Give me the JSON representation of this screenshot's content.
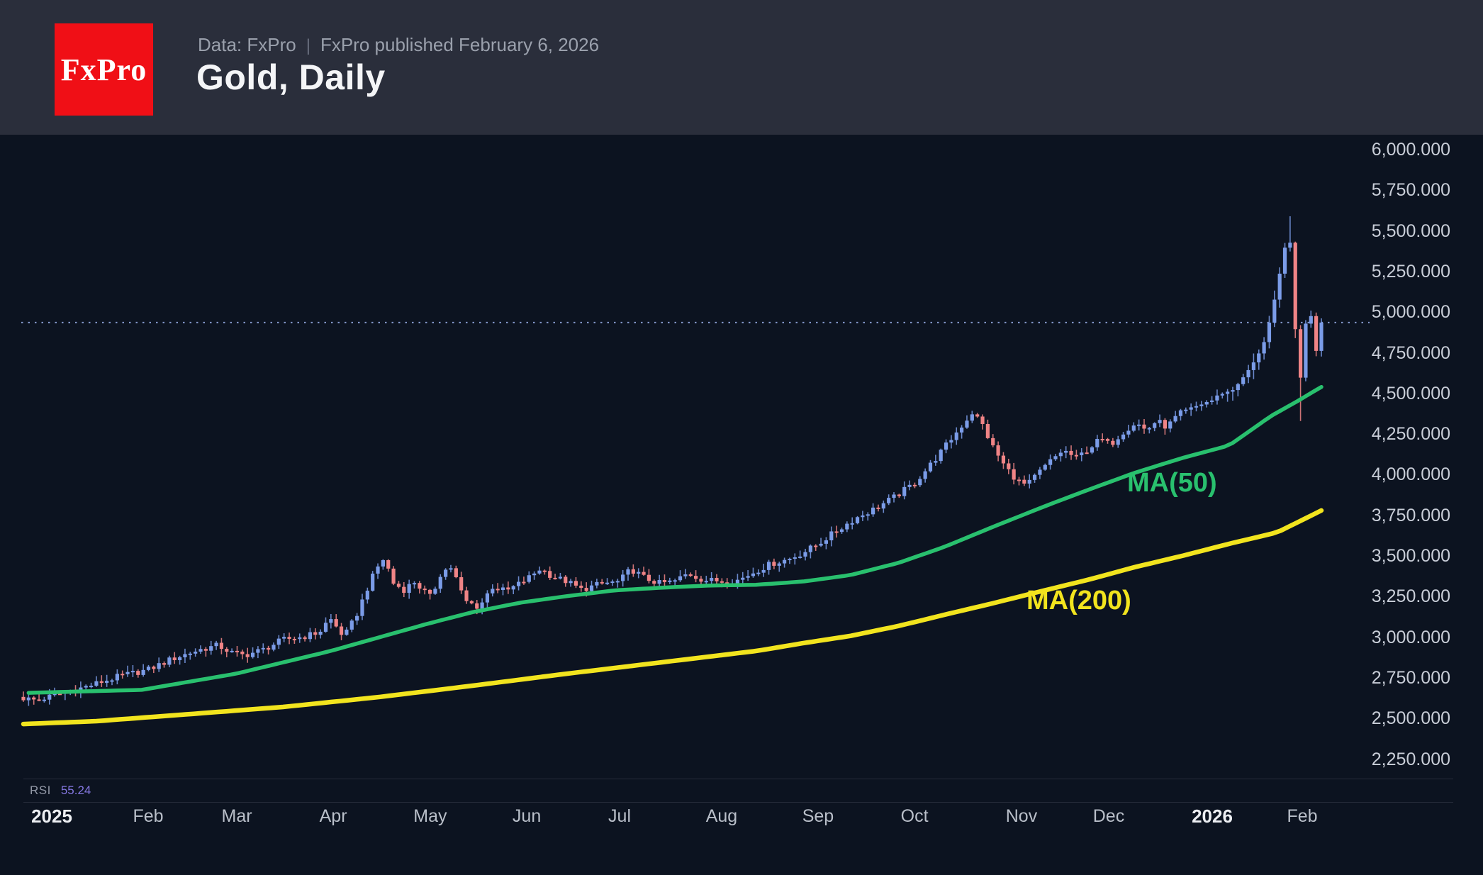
{
  "header": {
    "logo_text": "FxPro",
    "data_source": "Data: FxPro",
    "separator": "|",
    "published": "FxPro published February 6, 2026",
    "title": "Gold, Daily"
  },
  "chart_data": {
    "type": "candlestick",
    "instrument": "Gold",
    "timeframe": "Daily",
    "y_axis": {
      "tick_values": [
        6000,
        5750,
        5500,
        5250,
        5000,
        4750,
        4500,
        4250,
        4000,
        3750,
        3500,
        3250,
        3000,
        2750,
        2500,
        2250
      ],
      "tick_labels": [
        "6,000.000",
        "5,750.000",
        "5,500.000",
        "5,250.000",
        "5,000.000",
        "4,750.000",
        "4,500.000",
        "4,250.000",
        "4,000.000",
        "3,750.000",
        "3,500.000",
        "3,250.000",
        "3,000.000",
        "2,750.000",
        "2,500.000",
        "2,250.000"
      ]
    },
    "x_axis": {
      "labels": [
        {
          "label": "2025",
          "pos": 0.0349,
          "bold": true
        },
        {
          "label": "Feb",
          "pos": 0.0999,
          "bold": false
        },
        {
          "label": "Mar",
          "pos": 0.1597,
          "bold": false
        },
        {
          "label": "Apr",
          "pos": 0.2247,
          "bold": false
        },
        {
          "label": "May",
          "pos": 0.2901,
          "bold": false
        },
        {
          "label": "Jun",
          "pos": 0.3552,
          "bold": false
        },
        {
          "label": "Jul",
          "pos": 0.4178,
          "bold": false
        },
        {
          "label": "Aug",
          "pos": 0.4866,
          "bold": false
        },
        {
          "label": "Sep",
          "pos": 0.5516,
          "bold": false
        },
        {
          "label": "Oct",
          "pos": 0.6167,
          "bold": false
        },
        {
          "label": "Nov",
          "pos": 0.6888,
          "bold": false
        },
        {
          "label": "Dec",
          "pos": 0.7476,
          "bold": false
        },
        {
          "label": "2026",
          "pos": 0.8174,
          "bold": true
        },
        {
          "label": "Feb",
          "pos": 0.8781,
          "bold": false
        }
      ]
    },
    "price_line": {
      "value": 4936
    },
    "rsi": {
      "label": "RSI",
      "value": "55.24"
    },
    "candles": {
      "count": 250,
      "close_path": [
        [
          0,
          2625
        ],
        [
          0.01,
          2612
        ],
        [
          0.022,
          2638
        ],
        [
          0.05,
          2700
        ],
        [
          0.075,
          2762
        ],
        [
          0.096,
          2800
        ],
        [
          0.115,
          2868
        ],
        [
          0.135,
          2922
        ],
        [
          0.15,
          2950
        ],
        [
          0.16,
          2906
        ],
        [
          0.17,
          2888
        ],
        [
          0.185,
          2925
        ],
        [
          0.2,
          2985
        ],
        [
          0.215,
          3002
        ],
        [
          0.228,
          3030
        ],
        [
          0.236,
          3118
        ],
        [
          0.247,
          3002
        ],
        [
          0.256,
          3125
        ],
        [
          0.265,
          3302
        ],
        [
          0.272,
          3422
        ],
        [
          0.278,
          3488
        ],
        [
          0.285,
          3332
        ],
        [
          0.293,
          3292
        ],
        [
          0.301,
          3342
        ],
        [
          0.314,
          3242
        ],
        [
          0.322,
          3402
        ],
        [
          0.33,
          3432
        ],
        [
          0.34,
          3222
        ],
        [
          0.351,
          3185
        ],
        [
          0.361,
          3312
        ],
        [
          0.372,
          3282
        ],
        [
          0.388,
          3358
        ],
        [
          0.398,
          3422
        ],
        [
          0.408,
          3372
        ],
        [
          0.419,
          3342
        ],
        [
          0.43,
          3292
        ],
        [
          0.445,
          3330
        ],
        [
          0.459,
          3342
        ],
        [
          0.468,
          3420
        ],
        [
          0.479,
          3362
        ],
        [
          0.49,
          3332
        ],
        [
          0.501,
          3342
        ],
        [
          0.512,
          3392
        ],
        [
          0.524,
          3352
        ],
        [
          0.538,
          3346
        ],
        [
          0.551,
          3352
        ],
        [
          0.563,
          3402
        ],
        [
          0.576,
          3452
        ],
        [
          0.59,
          3482
        ],
        [
          0.601,
          3522
        ],
        [
          0.612,
          3572
        ],
        [
          0.626,
          3652
        ],
        [
          0.641,
          3732
        ],
        [
          0.656,
          3792
        ],
        [
          0.671,
          3862
        ],
        [
          0.687,
          3952
        ],
        [
          0.701,
          4082
        ],
        [
          0.713,
          4202
        ],
        [
          0.723,
          4302
        ],
        [
          0.731,
          4382
        ],
        [
          0.738,
          4322
        ],
        [
          0.746,
          4182
        ],
        [
          0.756,
          4052
        ],
        [
          0.766,
          3962
        ],
        [
          0.773,
          3932
        ],
        [
          0.781,
          4002
        ],
        [
          0.791,
          4082
        ],
        [
          0.801,
          4152
        ],
        [
          0.811,
          4102
        ],
        [
          0.821,
          4162
        ],
        [
          0.83,
          4222
        ],
        [
          0.837,
          4182
        ],
        [
          0.847,
          4262
        ],
        [
          0.857,
          4322
        ],
        [
          0.865,
          4272
        ],
        [
          0.873,
          4332
        ],
        [
          0.881,
          4292
        ],
        [
          0.89,
          4372
        ],
        [
          0.9,
          4402
        ],
        [
          0.908,
          4438
        ],
        [
          0.916,
          4458
        ],
        [
          0.924,
          4500
        ],
        [
          0.932,
          4522
        ],
        [
          0.94,
          4600
        ],
        [
          0.948,
          4692
        ],
        [
          0.952,
          4750
        ],
        [
          0.956,
          4820
        ],
        [
          0.96,
          4940
        ],
        [
          0.964,
          5080
        ],
        [
          0.968,
          5240
        ],
        [
          0.972,
          5400
        ],
        [
          0.976,
          5430
        ],
        [
          0.98,
          4882
        ],
        [
          0.984,
          4592
        ],
        [
          0.988,
          4935
        ],
        [
          0.992,
          4975
        ],
        [
          0.996,
          4762
        ],
        [
          1,
          4936
        ]
      ],
      "wick_overrides": [
        {
          "t": 0.976,
          "high": 5590
        },
        {
          "t": 0.984,
          "low": 4330
        }
      ]
    },
    "ma50": {
      "label": "MA(50)",
      "color": "#29c06e",
      "points": [
        [
          0.004,
          2658
        ],
        [
          0.091,
          2676
        ],
        [
          0.164,
          2776
        ],
        [
          0.237,
          2916
        ],
        [
          0.31,
          3080
        ],
        [
          0.346,
          3154
        ],
        [
          0.383,
          3213
        ],
        [
          0.419,
          3253
        ],
        [
          0.455,
          3288
        ],
        [
          0.492,
          3305
        ],
        [
          0.528,
          3318
        ],
        [
          0.565,
          3323
        ],
        [
          0.601,
          3343
        ],
        [
          0.637,
          3382
        ],
        [
          0.674,
          3457
        ],
        [
          0.71,
          3557
        ],
        [
          0.747,
          3679
        ],
        [
          0.784,
          3797
        ],
        [
          0.82,
          3906
        ],
        [
          0.856,
          4011
        ],
        [
          0.893,
          4103
        ],
        [
          0.929,
          4180
        ],
        [
          0.961,
          4360
        ],
        [
          0.981,
          4450
        ],
        [
          1,
          4540
        ]
      ]
    },
    "ma200": {
      "label": "MA(200)",
      "color": "#f2e41e",
      "points": [
        [
          0,
          2466
        ],
        [
          0.055,
          2483
        ],
        [
          0.128,
          2527
        ],
        [
          0.2,
          2571
        ],
        [
          0.274,
          2632
        ],
        [
          0.346,
          2702
        ],
        [
          0.419,
          2776
        ],
        [
          0.492,
          2846
        ],
        [
          0.565,
          2916
        ],
        [
          0.601,
          2964
        ],
        [
          0.637,
          3008
        ],
        [
          0.674,
          3069
        ],
        [
          0.71,
          3139
        ],
        [
          0.747,
          3209
        ],
        [
          0.784,
          3283
        ],
        [
          0.82,
          3353
        ],
        [
          0.856,
          3431
        ],
        [
          0.893,
          3501
        ],
        [
          0.929,
          3575
        ],
        [
          0.966,
          3645
        ],
        [
          1,
          3780
        ]
      ]
    },
    "colors": {
      "bull": "#7b9ce8",
      "bear": "#f08486",
      "price_line": "#93a9e0",
      "background": "#0c1320",
      "header_background": "#2a2e3b",
      "logo_red": "#f00f16",
      "rsi_value": "#8477e0"
    }
  }
}
